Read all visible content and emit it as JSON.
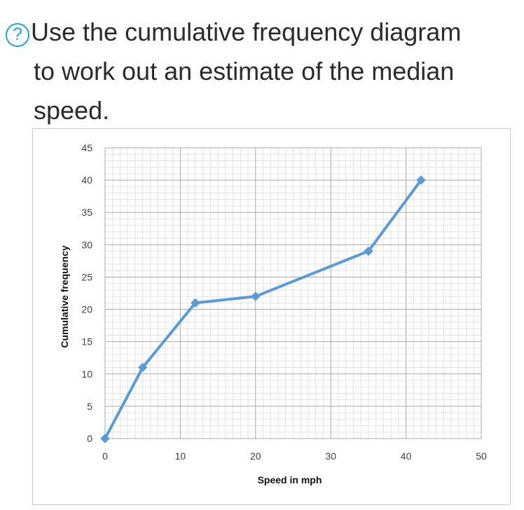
{
  "question": {
    "icon": "question-circle-icon",
    "icon_glyph": "?",
    "line1": "Use the cumulative frequency diagram",
    "line2": "to work out an estimate of the median",
    "line3": "speed."
  },
  "colors": {
    "accent": "#1aa3e8",
    "series": "#5b9bd5",
    "text": "#2b2b2b"
  },
  "chart_data": {
    "type": "line",
    "title": "",
    "xlabel": "Speed in mph",
    "ylabel": "Cumulative frequency",
    "xlim": [
      0,
      50
    ],
    "ylim": [
      0,
      45
    ],
    "xticks": [
      0,
      10,
      20,
      30,
      40,
      50
    ],
    "yticks": [
      0,
      5,
      10,
      15,
      20,
      25,
      30,
      35,
      40,
      45
    ],
    "grid": true,
    "legend": "none",
    "marker": "diamond",
    "series": [
      {
        "x": [
          0,
          5,
          12,
          20,
          35,
          42
        ],
        "y": [
          0,
          11,
          21,
          22,
          29,
          40
        ]
      }
    ]
  }
}
